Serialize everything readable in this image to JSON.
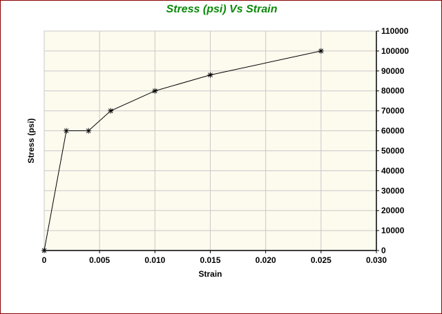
{
  "chart_data": {
    "type": "line",
    "title": "Stress (psi) Vs Strain",
    "xlabel": "Strain",
    "ylabel": "Stress (psi)",
    "xlim": [
      0,
      0.03
    ],
    "ylim": [
      0,
      110000
    ],
    "x_ticks": [
      "0",
      "0.005",
      "0.010",
      "0.015",
      "0.020",
      "0.025",
      "0.030"
    ],
    "y_ticks": [
      "0",
      "10000",
      "20000",
      "30000",
      "40000",
      "50000",
      "60000",
      "70000",
      "80000",
      "90000",
      "100000",
      "110000"
    ],
    "grid": true,
    "y_axis_position": "right",
    "marker": "asterisk",
    "series": [
      {
        "x": [
          0,
          0.002,
          0.004,
          0.006,
          0.01,
          0.015,
          0.025
        ],
        "y": [
          0,
          60000,
          60000,
          70000,
          80000,
          88000,
          100000
        ]
      }
    ]
  },
  "colors": {
    "title": "#0a8a0a",
    "plot_background": "#fdfaee",
    "grid": "#c8c8c8",
    "frame_border": "#8b0000",
    "line": "#000000"
  }
}
